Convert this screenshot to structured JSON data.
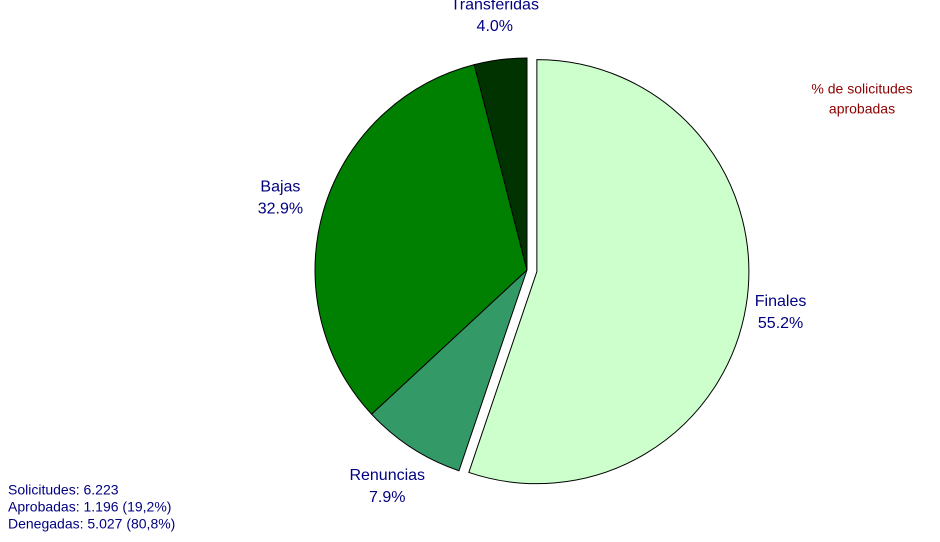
{
  "chart_data": {
    "type": "pie",
    "categories": [
      "Finales",
      "Renuncias",
      "Bajas",
      "Transferidas"
    ],
    "values": [
      55.2,
      7.9,
      32.9,
      4.0
    ],
    "value_labels": [
      "55.2%",
      "7.9%",
      "32.9%",
      "4.0%"
    ],
    "colors": [
      "#ccffcc",
      "#339966",
      "#008000",
      "#003300"
    ],
    "exploded": [
      true,
      false,
      false,
      false
    ],
    "annotation": [
      "% de solicitudes",
      "aprobadas"
    ],
    "notes": [
      "Solicitudes: 6.223",
      "Aprobadas: 1.196 (19,2%)",
      "Denegadas: 5.027 (80,8%)"
    ]
  }
}
